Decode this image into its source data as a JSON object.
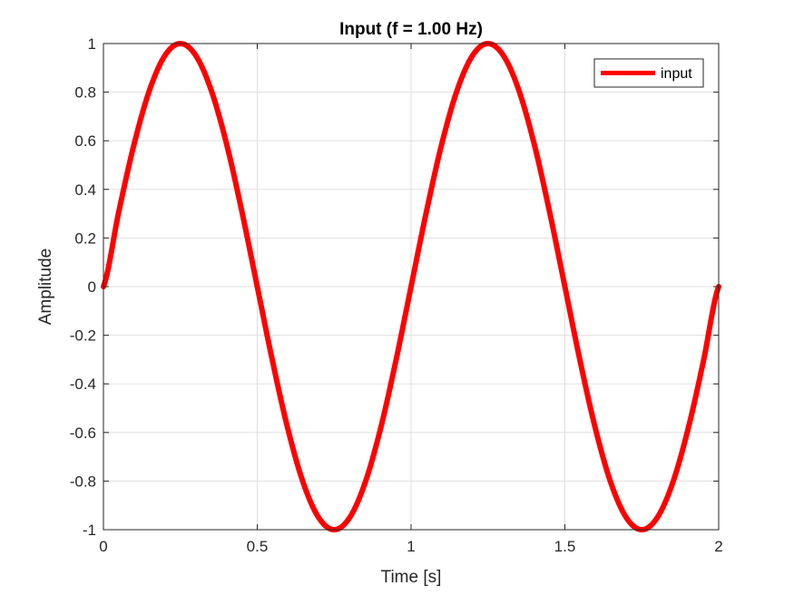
{
  "chart_data": {
    "type": "line",
    "title": "Input (f = 1.00 Hz)",
    "xlabel": "Time [s]",
    "ylabel": "Amplitude",
    "xlim": [
      0,
      2
    ],
    "ylim": [
      -1,
      1
    ],
    "xticks": [
      0,
      0.5,
      1,
      1.5,
      2
    ],
    "xtick_labels": [
      "0",
      "0.5",
      "1",
      "1.5",
      "2"
    ],
    "yticks": [
      -1,
      -0.8,
      -0.6,
      -0.4,
      -0.2,
      0,
      0.2,
      0.4,
      0.6,
      0.8,
      1
    ],
    "ytick_labels": [
      "-1",
      "-0.8",
      "-0.6",
      "-0.4",
      "-0.2",
      "0",
      "0.2",
      "0.4",
      "0.6",
      "0.8",
      "1"
    ],
    "grid": true,
    "legend_position": "top-right",
    "series": [
      {
        "name": "input",
        "color": "#ff0000",
        "x": [
          0,
          0.05,
          0.1,
          0.15,
          0.2,
          0.25,
          0.3,
          0.35,
          0.4,
          0.45,
          0.5,
          0.55,
          0.6,
          0.65,
          0.7,
          0.75,
          0.8,
          0.85,
          0.9,
          0.95,
          1.0,
          1.05,
          1.1,
          1.15,
          1.2,
          1.25,
          1.3,
          1.35,
          1.4,
          1.45,
          1.5,
          1.55,
          1.6,
          1.65,
          1.7,
          1.75,
          1.8,
          1.85,
          1.9,
          1.95,
          2.0
        ],
        "y": [
          0,
          0.309,
          0.588,
          0.809,
          0.951,
          1.0,
          0.951,
          0.809,
          0.588,
          0.309,
          0,
          -0.309,
          -0.588,
          -0.809,
          -0.951,
          -1.0,
          -0.951,
          -0.809,
          -0.588,
          -0.309,
          0,
          0.309,
          0.588,
          0.809,
          0.951,
          1.0,
          0.951,
          0.809,
          0.588,
          0.309,
          0,
          -0.309,
          -0.588,
          -0.809,
          -0.951,
          -1.0,
          -0.951,
          -0.809,
          -0.588,
          -0.309,
          0
        ]
      }
    ]
  }
}
